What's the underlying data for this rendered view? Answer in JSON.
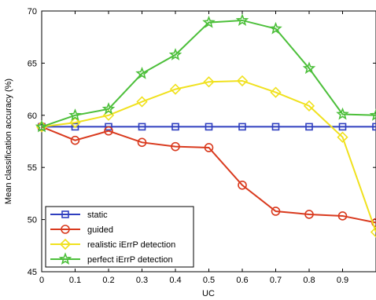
{
  "chart_data": {
    "type": "line",
    "title": "",
    "xlabel": "UC",
    "ylabel": "Mean classification accuracy (%)",
    "xlim": [
      0,
      1
    ],
    "ylim": [
      45,
      70
    ],
    "grid": false,
    "legend_position": "bottom-left",
    "x_ticks": [
      0,
      0.1,
      0.2,
      0.3,
      0.4,
      0.5,
      0.6,
      0.7,
      0.8,
      0.9
    ],
    "x_tick_labels": [
      "0",
      "0.1",
      "0.2",
      "0.3",
      "0.4",
      "0.5",
      "0.6",
      "0.7",
      "0.8",
      "0.9"
    ],
    "y_ticks": [
      45,
      50,
      55,
      60,
      65,
      70
    ],
    "y_tick_labels": [
      "45",
      "50",
      "55",
      "60",
      "65",
      "70"
    ],
    "x": [
      0,
      0.1,
      0.2,
      0.3,
      0.4,
      0.5,
      0.6,
      0.7,
      0.8,
      0.9,
      1.0
    ],
    "series": [
      {
        "name": "static",
        "color": "#2f3fbf",
        "marker": "square",
        "values": [
          58.9,
          58.9,
          58.9,
          58.9,
          58.9,
          58.9,
          58.9,
          58.9,
          58.9,
          58.9,
          58.9
        ]
      },
      {
        "name": "guided",
        "color": "#d93a1e",
        "marker": "circle",
        "values": [
          58.9,
          57.6,
          58.5,
          57.4,
          57.0,
          56.9,
          53.3,
          50.8,
          50.5,
          50.35,
          49.7
        ]
      },
      {
        "name": "realistic iErrP detection",
        "color": "#f0e11e",
        "marker": "diamond",
        "values": [
          58.9,
          59.3,
          60.0,
          61.3,
          62.5,
          63.2,
          63.3,
          62.2,
          60.9,
          57.9,
          48.8
        ]
      },
      {
        "name": "perfect iErrP detection",
        "color": "#4cbf3a",
        "marker": "star",
        "values": [
          58.9,
          60.0,
          60.6,
          64.0,
          65.8,
          68.9,
          69.1,
          68.3,
          64.5,
          60.1,
          60.0
        ]
      }
    ]
  }
}
